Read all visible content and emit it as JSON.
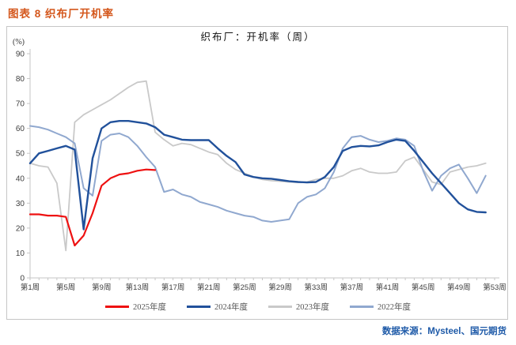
{
  "page": {
    "title": "图表 8 织布厂开机率",
    "source": "数据来源：Mysteel、国元期货"
  },
  "chart_data": {
    "type": "line",
    "title": "织布厂：开机率（周）",
    "unit_label": "(%)",
    "ylim": [
      0,
      90
    ],
    "y_tick_labels": [
      "0",
      "10",
      "20",
      "30",
      "40",
      "50",
      "60",
      "70",
      "80",
      "90"
    ],
    "x_categories": 53,
    "x_tick_labels": [
      "第1周",
      "第5周",
      "第9周",
      "第13周",
      "第17周",
      "第21周",
      "第25周",
      "第29周",
      "第33周",
      "第37周",
      "第41周",
      "第45周",
      "第49周",
      "第53周"
    ],
    "grid": false,
    "legend_position": "bottom",
    "axis_color": "#c6c6c6",
    "tick_text_color": "#404040",
    "series": [
      {
        "name": "2025年度",
        "color": "#ee1111",
        "values": [
          25.5,
          25.5,
          25,
          25,
          24.5,
          13,
          17,
          26,
          37,
          40,
          41.5,
          42,
          43,
          43.5,
          43.3
        ]
      },
      {
        "name": "2024年度",
        "color": "#21519b",
        "values": [
          46,
          50,
          51,
          52,
          53,
          51.5,
          19.5,
          48,
          60,
          62.5,
          63,
          63,
          62.5,
          62,
          60.5,
          57.5,
          56.5,
          55.5,
          55.3,
          55.3,
          55.3,
          52,
          49,
          46.5,
          41.5,
          40.5,
          40,
          39.8,
          39.3,
          38.8,
          38.5,
          38.3,
          38.5,
          40.5,
          44.5,
          51,
          52.5,
          53,
          52.8,
          53.2,
          54.5,
          55.5,
          55,
          51,
          46.5,
          42,
          38,
          34,
          30,
          27.5,
          26.5,
          26.3
        ]
      },
      {
        "name": "2023年度",
        "color": "#c9c9c9",
        "values": [
          46,
          45,
          44.5,
          38,
          11,
          62.5,
          65.5,
          67.5,
          69.5,
          71.5,
          74,
          76.5,
          78.5,
          79,
          58.5,
          55.5,
          53,
          54,
          53.5,
          52,
          50.5,
          49.5,
          46,
          43.5,
          42,
          40.5,
          39.5,
          39,
          38.8,
          38.5,
          38.3,
          38.5,
          39.5,
          40,
          40,
          41,
          43,
          44,
          42.5,
          42,
          42,
          42.5,
          47,
          48.5,
          43.5,
          38.5,
          37.5,
          42.5,
          43.5,
          44.5,
          45,
          46
        ]
      },
      {
        "name": "2022年度",
        "color": "#90a8cf",
        "values": [
          61,
          60.5,
          59.5,
          58,
          56.5,
          54,
          36,
          33,
          55,
          57.5,
          58,
          56.5,
          53,
          48.5,
          44.5,
          34.5,
          35.5,
          33.5,
          32.5,
          30.5,
          29.5,
          28.5,
          27,
          26,
          25,
          24.5,
          23,
          22.5,
          23,
          23.5,
          30,
          32.5,
          33.5,
          36,
          42.5,
          52,
          56.5,
          57,
          55.5,
          54.5,
          55,
          56,
          55.5,
          53,
          43,
          35,
          41,
          44,
          45.5,
          40,
          34,
          41
        ]
      }
    ]
  }
}
